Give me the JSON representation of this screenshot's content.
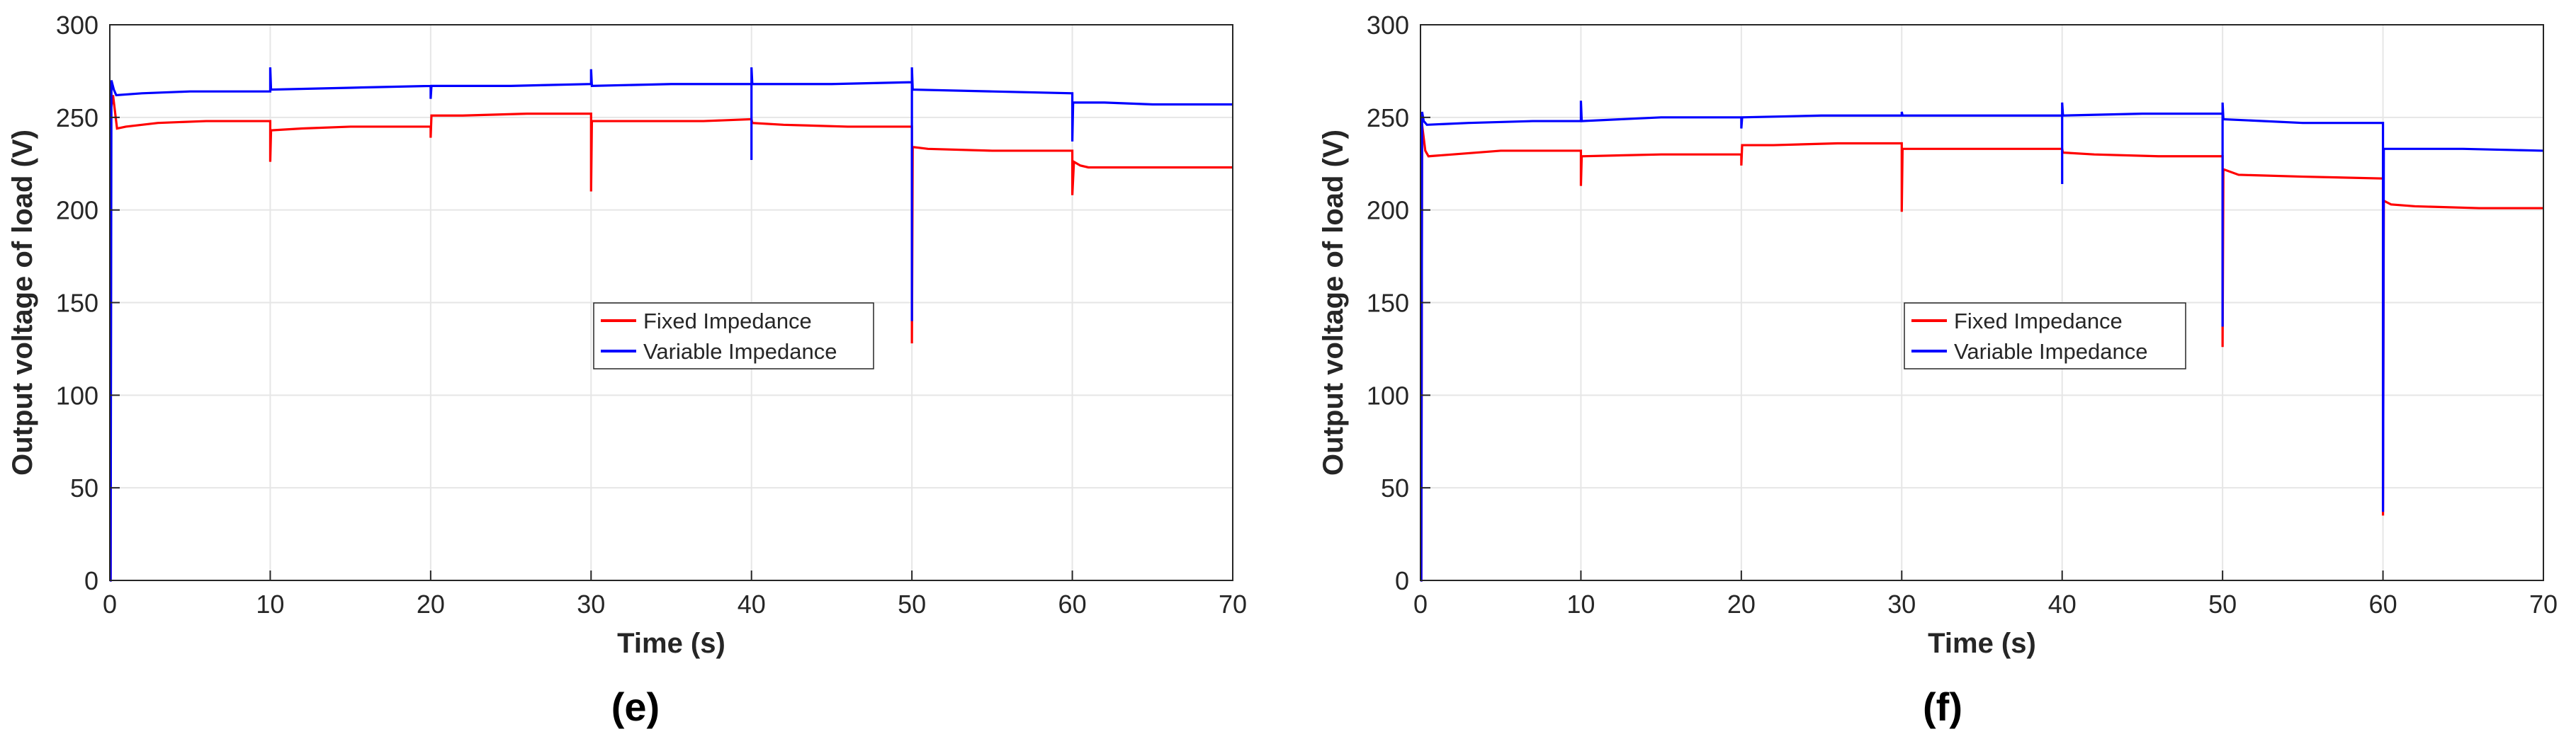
{
  "colors": {
    "fixed": "#ff0000",
    "variable": "#0000ff",
    "grid": "#e6e6e6",
    "axis": "#262626"
  },
  "chart_data": [
    {
      "type": "line",
      "caption": "(e)",
      "xlabel": "Time (s)",
      "ylabel": "Output voltage of load (V)",
      "xlim": [
        0,
        70
      ],
      "ylim": [
        0,
        300
      ],
      "xticks": [
        0,
        10,
        20,
        30,
        40,
        50,
        60,
        70
      ],
      "yticks": [
        0,
        50,
        100,
        150,
        200,
        250,
        300
      ],
      "grid": true,
      "legend_position": "center",
      "series": [
        {
          "name": "Fixed Impedance",
          "color": "#ff0000",
          "points": [
            [
              0,
              0
            ],
            [
              0.05,
              0
            ],
            [
              0.08,
              255
            ],
            [
              0.2,
              262
            ],
            [
              0.45,
              244
            ],
            [
              1,
              245
            ],
            [
              3,
              247
            ],
            [
              6,
              248
            ],
            [
              10,
              248
            ],
            [
              10,
              226
            ],
            [
              10.05,
              243
            ],
            [
              12,
              244
            ],
            [
              15,
              245
            ],
            [
              20,
              245
            ],
            [
              20,
              239
            ],
            [
              20.05,
              251
            ],
            [
              22,
              251
            ],
            [
              26,
              252
            ],
            [
              30,
              252
            ],
            [
              30,
              210
            ],
            [
              30.05,
              248
            ],
            [
              33,
              248
            ],
            [
              37,
              248
            ],
            [
              40,
              249
            ],
            [
              40,
              249
            ],
            [
              40.05,
              247
            ],
            [
              42,
              246
            ],
            [
              46,
              245
            ],
            [
              50,
              245
            ],
            [
              50,
              128
            ],
            [
              50.05,
              234
            ],
            [
              51,
              233
            ],
            [
              55,
              232
            ],
            [
              60,
              232
            ],
            [
              60,
              208
            ],
            [
              60.1,
              226
            ],
            [
              60.5,
              224
            ],
            [
              61,
              223
            ],
            [
              65,
              223
            ],
            [
              70,
              223
            ]
          ]
        },
        {
          "name": "Variable Impedance",
          "color": "#0000ff",
          "points": [
            [
              0,
              0
            ],
            [
              0.05,
              0
            ],
            [
              0.1,
              270
            ],
            [
              0.25,
              265
            ],
            [
              0.4,
              262
            ],
            [
              2,
              263
            ],
            [
              5,
              264
            ],
            [
              10,
              264
            ],
            [
              10,
              277
            ],
            [
              10.05,
              265
            ],
            [
              15,
              266
            ],
            [
              20,
              267
            ],
            [
              20,
              260
            ],
            [
              20.05,
              267
            ],
            [
              25,
              267
            ],
            [
              30,
              268
            ],
            [
              30,
              276
            ],
            [
              30.05,
              267
            ],
            [
              35,
              268
            ],
            [
              40,
              268
            ],
            [
              40,
              227
            ],
            [
              40,
              277
            ],
            [
              40.05,
              268
            ],
            [
              45,
              268
            ],
            [
              50,
              269
            ],
            [
              50,
              140
            ],
            [
              50,
              277
            ],
            [
              50.05,
              265
            ],
            [
              55,
              264
            ],
            [
              60,
              263
            ],
            [
              60,
              237
            ],
            [
              60.05,
              258
            ],
            [
              62,
              258
            ],
            [
              65,
              257
            ],
            [
              70,
              257
            ]
          ]
        }
      ]
    },
    {
      "type": "line",
      "caption": "(f)",
      "xlabel": "Time (s)",
      "ylabel": "Output voltage of load (V)",
      "xlim": [
        0,
        70
      ],
      "ylim": [
        0,
        300
      ],
      "xticks": [
        0,
        10,
        20,
        30,
        40,
        50,
        60,
        70
      ],
      "yticks": [
        0,
        50,
        100,
        150,
        200,
        250,
        300
      ],
      "grid": true,
      "legend_position": "center",
      "series": [
        {
          "name": "Fixed Impedance",
          "color": "#ff0000",
          "points": [
            [
              0,
              0
            ],
            [
              0.05,
              0
            ],
            [
              0.1,
              246
            ],
            [
              0.3,
              232
            ],
            [
              0.5,
              229
            ],
            [
              2,
              230
            ],
            [
              5,
              232
            ],
            [
              10,
              232
            ],
            [
              10,
              213
            ],
            [
              10.05,
              229
            ],
            [
              15,
              230
            ],
            [
              20,
              230
            ],
            [
              20,
              224
            ],
            [
              20.05,
              235
            ],
            [
              22,
              235
            ],
            [
              26,
              236
            ],
            [
              30,
              236
            ],
            [
              30,
              199
            ],
            [
              30.05,
              233
            ],
            [
              35,
              233
            ],
            [
              40,
              233
            ],
            [
              40,
              233
            ],
            [
              40.05,
              231
            ],
            [
              42,
              230
            ],
            [
              46,
              229
            ],
            [
              50,
              229
            ],
            [
              50,
              126
            ],
            [
              50.05,
              222
            ],
            [
              51,
              219
            ],
            [
              55,
              218
            ],
            [
              60,
              217
            ],
            [
              60,
              35
            ],
            [
              60.05,
              205
            ],
            [
              60.5,
              203
            ],
            [
              62,
              202
            ],
            [
              66,
              201
            ],
            [
              70,
              201
            ]
          ]
        },
        {
          "name": "Variable Impedance",
          "color": "#0000ff",
          "points": [
            [
              0,
              0
            ],
            [
              0.05,
              0
            ],
            [
              0.1,
              253
            ],
            [
              0.2,
              248
            ],
            [
              0.4,
              246
            ],
            [
              3,
              247
            ],
            [
              7,
              248
            ],
            [
              10,
              248
            ],
            [
              10,
              259
            ],
            [
              10.05,
              248
            ],
            [
              15,
              250
            ],
            [
              20,
              250
            ],
            [
              20,
              244
            ],
            [
              20.05,
              250
            ],
            [
              25,
              251
            ],
            [
              30,
              251
            ],
            [
              30,
              253
            ],
            [
              30.05,
              251
            ],
            [
              35,
              251
            ],
            [
              40,
              251
            ],
            [
              40,
              214
            ],
            [
              40,
              258
            ],
            [
              40.05,
              251
            ],
            [
              45,
              252
            ],
            [
              50,
              252
            ],
            [
              50,
              137
            ],
            [
              50,
              258
            ],
            [
              50.05,
              249
            ],
            [
              55,
              247
            ],
            [
              60,
              247
            ],
            [
              60,
              37
            ],
            [
              60.05,
              233
            ],
            [
              65,
              233
            ],
            [
              70,
              232
            ]
          ]
        }
      ]
    }
  ]
}
